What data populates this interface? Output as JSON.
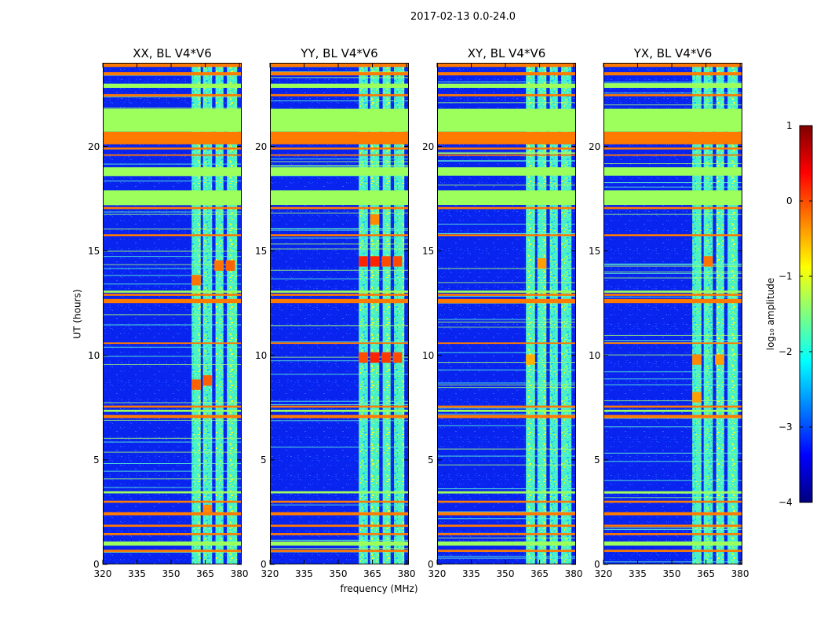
{
  "chart_data": {
    "type": "heatmap",
    "suptitle": "2017-02-13 0.0-24.0",
    "xlabel": "frequency (MHz)",
    "ylabel": "UT (hours)",
    "xlim": [
      320,
      381
    ],
    "ylim": [
      0,
      24
    ],
    "xticks": [
      320,
      335,
      350,
      365,
      380
    ],
    "yticks": [
      0,
      5,
      10,
      15,
      20
    ],
    "panels": [
      {
        "title": "XX, BL V4*V6"
      },
      {
        "title": "YY, BL V4*V6"
      },
      {
        "title": "XY, BL V4*V6"
      },
      {
        "title": "YX, BL V4*V6"
      }
    ],
    "colorbar": {
      "label": "log₁₀ amplitude",
      "range": [
        -4,
        1
      ],
      "ticks": [
        "1",
        "0",
        "−1",
        "−2",
        "−3",
        "−4"
      ],
      "colormap": [
        "#00007f",
        "#0000ff",
        "#007fff",
        "#00ffff",
        "#7fff7f",
        "#ffff00",
        "#ff7f00",
        "#ff0000",
        "#7f0000"
      ]
    },
    "signal_band_mhz": [
      359,
      379
    ],
    "signal_subbands_mhz": [
      [
        359,
        363
      ],
      [
        364,
        368
      ],
      [
        369.5,
        373
      ],
      [
        374.5,
        379
      ]
    ],
    "flagged_green_hours": [
      [
        20.7,
        21.8
      ],
      [
        17.2,
        17.9
      ],
      [
        18.6,
        19.0
      ],
      [
        22.8,
        23.0
      ],
      [
        0.9,
        1.1
      ],
      [
        3.4,
        3.5
      ],
      [
        13.0,
        13.1
      ],
      [
        7.3,
        7.4
      ]
    ],
    "flagged_orange_hours": [
      [
        20.1,
        20.7
      ],
      [
        23.8,
        24.0
      ],
      [
        23.4,
        23.55
      ],
      [
        22.4,
        22.5
      ],
      [
        19.85,
        19.95
      ],
      [
        19.55,
        19.62
      ],
      [
        17.0,
        17.1
      ],
      [
        15.7,
        15.8
      ],
      [
        12.5,
        12.7
      ],
      [
        12.85,
        12.95
      ],
      [
        10.55,
        10.62
      ],
      [
        7.5,
        7.6
      ],
      [
        7.0,
        7.15
      ],
      [
        2.35,
        2.5
      ],
      [
        1.8,
        1.9
      ],
      [
        1.4,
        1.5
      ],
      [
        0.6,
        0.7
      ],
      [
        2.95,
        3.05
      ]
    ],
    "hot_spots": [
      {
        "panel": 0,
        "x": 366,
        "y": 8.8,
        "value": -0.1
      },
      {
        "panel": 0,
        "x": 361,
        "y": 8.6,
        "value": -0.1
      },
      {
        "panel": 0,
        "x": 371,
        "y": 14.3,
        "value": -0.2
      },
      {
        "panel": 0,
        "x": 376,
        "y": 14.3,
        "value": -0.1
      },
      {
        "panel": 0,
        "x": 361,
        "y": 13.6,
        "value": -0.2
      },
      {
        "panel": 0,
        "x": 366,
        "y": 2.6,
        "value": -0.3
      },
      {
        "panel": 1,
        "x": 361,
        "y": 14.5,
        "value": 0.2
      },
      {
        "panel": 1,
        "x": 366,
        "y": 14.5,
        "value": 0.2
      },
      {
        "panel": 1,
        "x": 371,
        "y": 14.5,
        "value": 0.0
      },
      {
        "panel": 1,
        "x": 376,
        "y": 14.5,
        "value": 0.0
      },
      {
        "panel": 1,
        "x": 361,
        "y": 9.9,
        "value": 0.0
      },
      {
        "panel": 1,
        "x": 366,
        "y": 9.9,
        "value": 0.2
      },
      {
        "panel": 1,
        "x": 371,
        "y": 9.9,
        "value": 0.1
      },
      {
        "panel": 1,
        "x": 376,
        "y": 9.9,
        "value": 0.0
      },
      {
        "panel": 1,
        "x": 366,
        "y": 16.5,
        "value": -0.3
      },
      {
        "panel": 2,
        "x": 366,
        "y": 14.4,
        "value": -0.4
      },
      {
        "panel": 2,
        "x": 361,
        "y": 9.8,
        "value": -0.5
      },
      {
        "panel": 3,
        "x": 361,
        "y": 9.8,
        "value": -0.3
      },
      {
        "panel": 3,
        "x": 366,
        "y": 14.5,
        "value": -0.2
      },
      {
        "panel": 3,
        "x": 371,
        "y": 9.8,
        "value": -0.4
      },
      {
        "panel": 3,
        "x": 361,
        "y": 8.0,
        "value": -0.4
      }
    ]
  }
}
